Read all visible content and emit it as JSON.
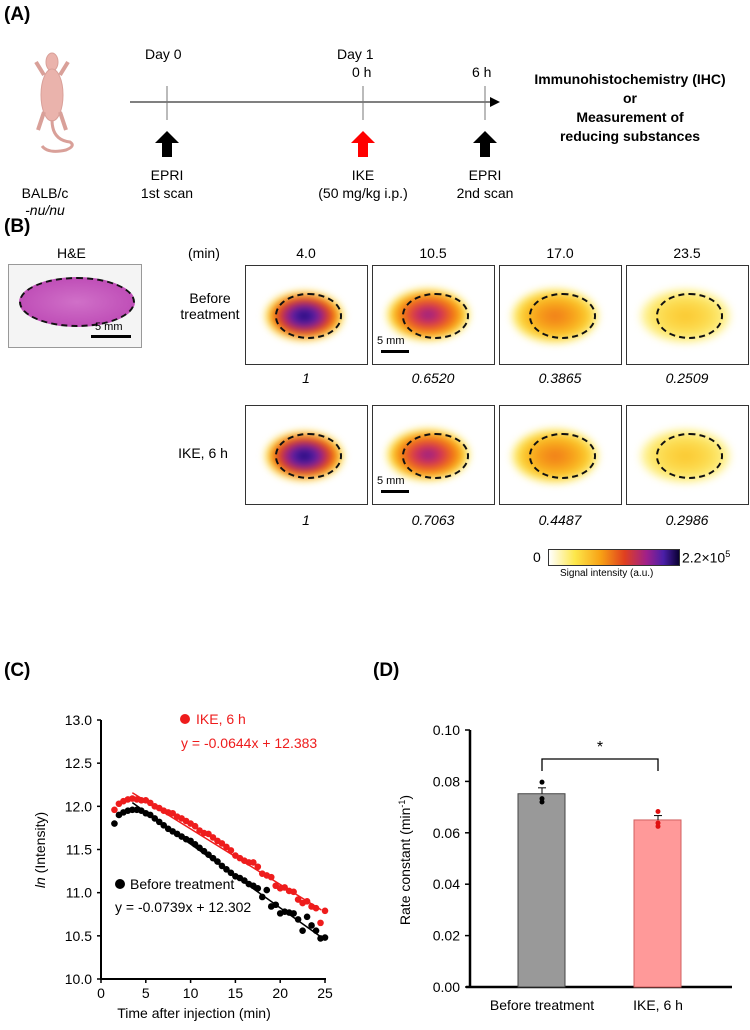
{
  "panelA": {
    "label": "(A)",
    "mouse_strain": "BALB/c",
    "mouse_strain2": "-nu/nu",
    "day0": "Day 0",
    "day1": "Day 1",
    "t0": "0 h",
    "t6": "6 h",
    "events": [
      {
        "title": "EPRI",
        "sub": "1st scan",
        "color": "#000000"
      },
      {
        "title": "IKE",
        "sub": "(50 mg/kg i.p.)",
        "color": "#ff0000"
      },
      {
        "title": "EPRI",
        "sub": "2nd scan",
        "color": "#000000"
      }
    ],
    "outcome": [
      "Immunohistochemistry (IHC)",
      "or",
      "Measurement of",
      "reducing substances"
    ]
  },
  "panelB": {
    "label": "(B)",
    "he_label": "H&E",
    "scale_he": "5 mm",
    "scale_map": "5 mm",
    "min_label": "(min)",
    "times": [
      "4.0",
      "10.5",
      "17.0",
      "23.5"
    ],
    "rows": [
      {
        "name": "Before",
        "name2": "treatment",
        "values": [
          "1",
          "0.6520",
          "0.3865",
          "0.2509"
        ]
      },
      {
        "name": "IKE, 6 h",
        "name2": "",
        "values": [
          "1",
          "0.7063",
          "0.4487",
          "0.2986"
        ]
      }
    ],
    "colorbar": {
      "min": "0",
      "max": "2.2×10",
      "max_exp": "5",
      "label": "Signal intensity (a.u.)"
    }
  },
  "chart_data": [
    {
      "type": "scatter",
      "panel": "(C)",
      "xlabel": "Time after injection (min)",
      "ylabel_italic": "ln",
      "ylabel": " (Intensity)",
      "xlim": [
        0,
        25
      ],
      "ylim": [
        10.0,
        13.0
      ],
      "xticks": [
        "0",
        "5",
        "10",
        "15",
        "20",
        "25"
      ],
      "yticks": [
        "10.0",
        "10.5",
        "11.0",
        "11.5",
        "12.0",
        "12.5",
        "13.0"
      ],
      "x": [
        1.5,
        2,
        2.5,
        3,
        3.5,
        4,
        4.5,
        5,
        5.5,
        6,
        6.5,
        7,
        7.5,
        8,
        8.5,
        9,
        9.5,
        10,
        10.5,
        11,
        11.5,
        12,
        12.5,
        13,
        13.5,
        14,
        14.5,
        15,
        15.5,
        16,
        16.5,
        17,
        17.5,
        18,
        18.5,
        19,
        19.5,
        20,
        20.5,
        21,
        21.5,
        22,
        22.5,
        23,
        23.5,
        24,
        24.5,
        25
      ],
      "series": [
        {
          "name": "Before treatment",
          "color": "#000000",
          "equation": "y = -0.0739x + 12.302",
          "slope": -0.0739,
          "intercept": 12.302,
          "values": [
            11.8,
            11.9,
            11.93,
            11.95,
            11.96,
            11.96,
            11.95,
            11.92,
            11.9,
            11.86,
            11.82,
            11.78,
            11.74,
            11.71,
            11.68,
            11.65,
            11.62,
            11.6,
            11.56,
            11.52,
            11.48,
            11.44,
            11.4,
            11.36,
            11.31,
            11.27,
            11.23,
            11.19,
            11.17,
            11.14,
            11.1,
            11.08,
            11.05,
            10.95,
            11.03,
            10.84,
            10.86,
            10.76,
            10.78,
            10.77,
            10.76,
            10.69,
            10.56,
            10.72,
            10.62,
            10.56,
            10.47,
            10.48
          ]
        },
        {
          "name": "IKE, 6 h",
          "color": "#ee1c1c",
          "equation": "y = -0.0644x + 12.383",
          "slope": -0.0644,
          "intercept": 12.383,
          "values": [
            11.96,
            12.03,
            12.06,
            12.08,
            12.09,
            12.08,
            12.07,
            12.07,
            12.04,
            12.0,
            11.98,
            11.95,
            11.93,
            11.92,
            11.88,
            11.86,
            11.83,
            11.8,
            11.77,
            11.72,
            11.69,
            11.68,
            11.64,
            11.6,
            11.57,
            11.53,
            11.49,
            11.43,
            11.4,
            11.37,
            11.35,
            11.35,
            11.3,
            11.22,
            11.2,
            11.18,
            11.08,
            11.05,
            11.06,
            11.02,
            11.01,
            10.92,
            10.88,
            10.9,
            10.84,
            10.82,
            10.65,
            10.79
          ]
        }
      ]
    },
    {
      "type": "bar",
      "panel": "(D)",
      "ylabel": "Rate constant (min",
      "ylabel_sup": "-1",
      "ylabel_end": ")",
      "ylim": [
        0,
        0.1
      ],
      "yticks": [
        "0.00",
        "0.02",
        "0.04",
        "0.06",
        "0.08",
        "0.10"
      ],
      "categories": [
        "Before treatment",
        "IKE, 6 h"
      ],
      "values": [
        0.0752,
        0.065
      ],
      "errors": [
        0.0023,
        0.0017
      ],
      "points": [
        [
          0.0797,
          0.0733,
          0.072
        ],
        [
          0.0683,
          0.0638,
          0.0625
        ]
      ],
      "colors": [
        "#999999",
        "#ff9999"
      ],
      "point_colors": [
        "#000000",
        "#e01010"
      ],
      "significance": "*"
    }
  ]
}
